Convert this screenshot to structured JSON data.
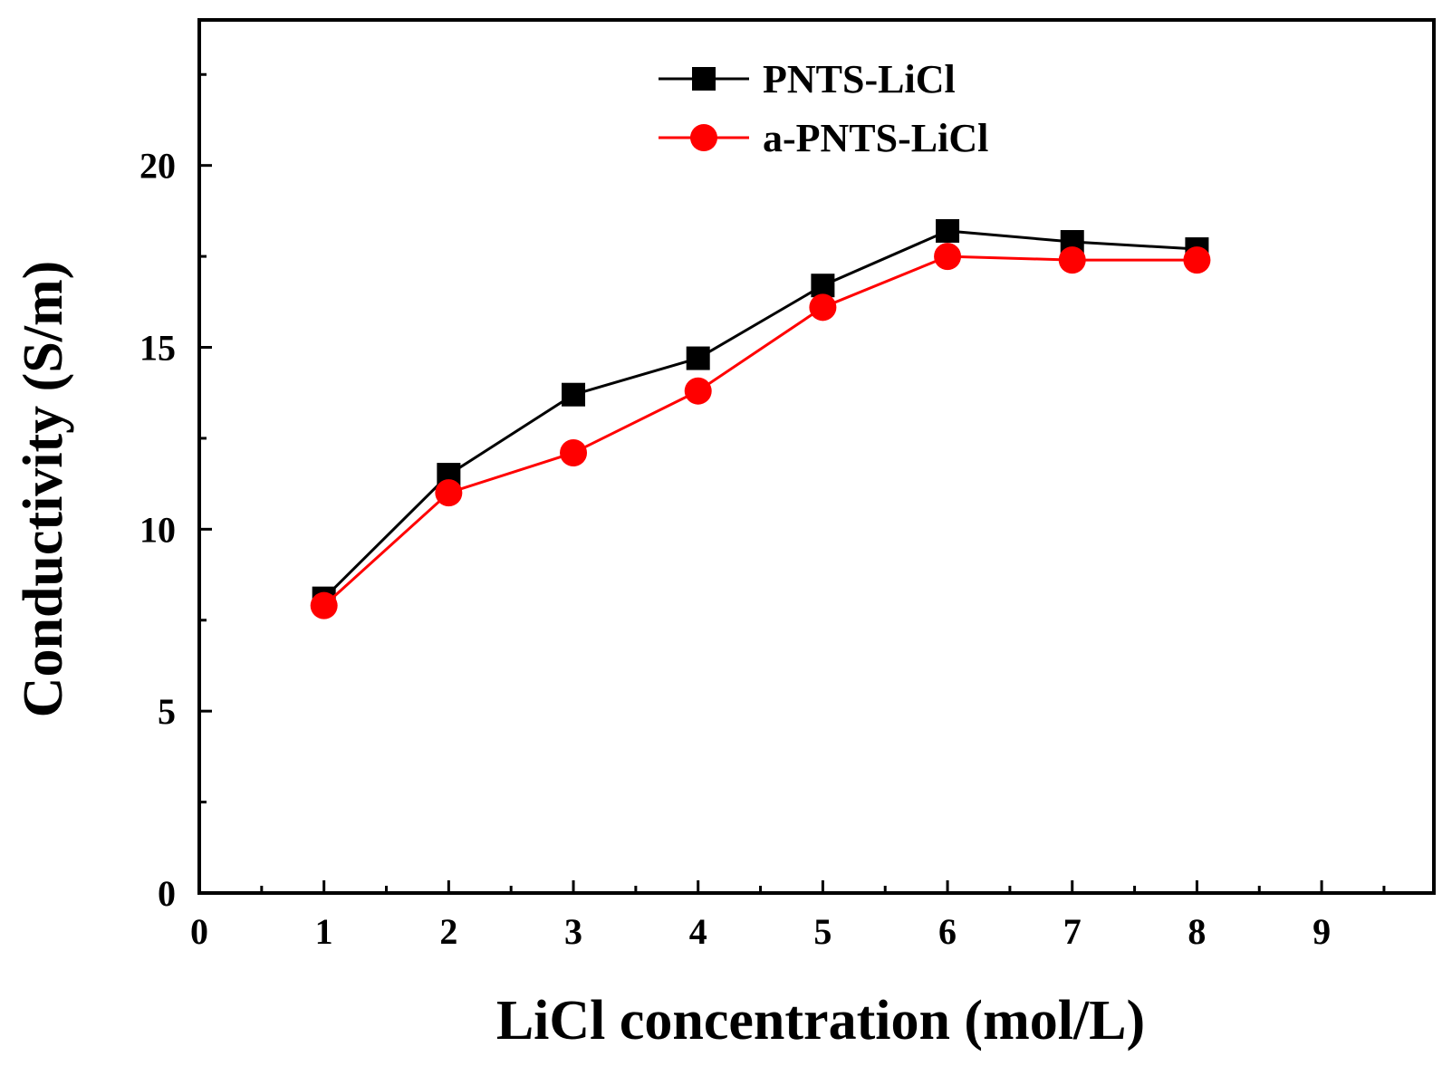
{
  "chart_data": {
    "type": "line",
    "xlabel": "LiCl concentration (mol/L)",
    "ylabel": "Conductivity (S/m)",
    "xlim": [
      0,
      9.9
    ],
    "ylim": [
      0,
      24
    ],
    "x_ticks": [
      0,
      1,
      2,
      3,
      4,
      5,
      6,
      7,
      8,
      9
    ],
    "y_ticks": [
      0,
      5,
      10,
      15,
      20
    ],
    "x_tick_labels": [
      "0",
      "1",
      "2",
      "3",
      "4",
      "5",
      "6",
      "7",
      "8",
      "9"
    ],
    "y_tick_labels": [
      "0",
      "5",
      "10",
      "15",
      "20"
    ],
    "grid": false,
    "legend_position": "top-center",
    "x": [
      1,
      2,
      3,
      4,
      5,
      6,
      7,
      8
    ],
    "series": [
      {
        "name": "PNTS-LiCl",
        "marker": "square",
        "color": "#000000",
        "values": [
          8.1,
          11.5,
          13.7,
          14.7,
          16.7,
          18.2,
          17.9,
          17.7
        ]
      },
      {
        "name": "a-PNTS-LiCl",
        "marker": "circle",
        "color": "#ff0000",
        "values": [
          7.9,
          11.0,
          12.1,
          13.8,
          16.1,
          17.5,
          17.4,
          17.4
        ]
      }
    ]
  }
}
